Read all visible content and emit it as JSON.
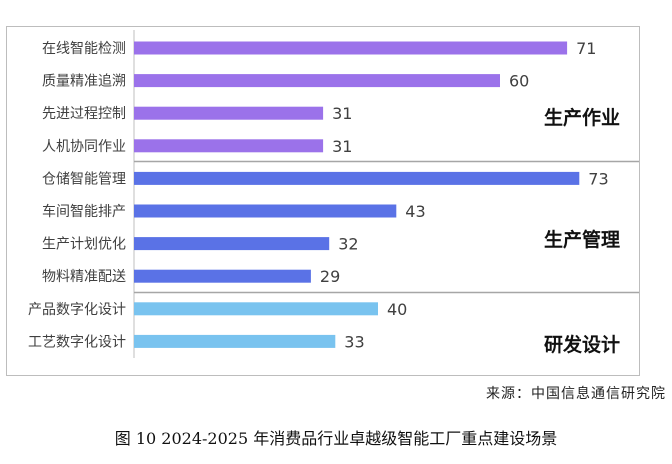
{
  "chart_data": {
    "type": "bar",
    "orientation": "horizontal",
    "title": "",
    "xlabel": "",
    "ylabel": "",
    "xlim": [
      0,
      80
    ],
    "grid": false,
    "categories": [
      "在线智能检测",
      "质量精准追溯",
      "先进过程控制",
      "人机协同作业",
      "仓储智能管理",
      "车间智能排产",
      "生产计划优化",
      "物料精准配送",
      "产品数字化设计",
      "工艺数字化设计"
    ],
    "values": [
      71,
      60,
      31,
      31,
      73,
      43,
      32,
      29,
      40,
      33
    ],
    "groups": [
      {
        "name": "生产作业",
        "count": 4,
        "color": "#9b72ea"
      },
      {
        "name": "生产管理",
        "count": 4,
        "color": "#5a72e6"
      },
      {
        "name": "研发设计",
        "count": 2,
        "color": "#79c3ef"
      }
    ]
  },
  "source_text": "来源：中国信息通信研究院",
  "caption": "图 10 2024-2025 年消费品行业卓越级智能工厂重点建设场景"
}
